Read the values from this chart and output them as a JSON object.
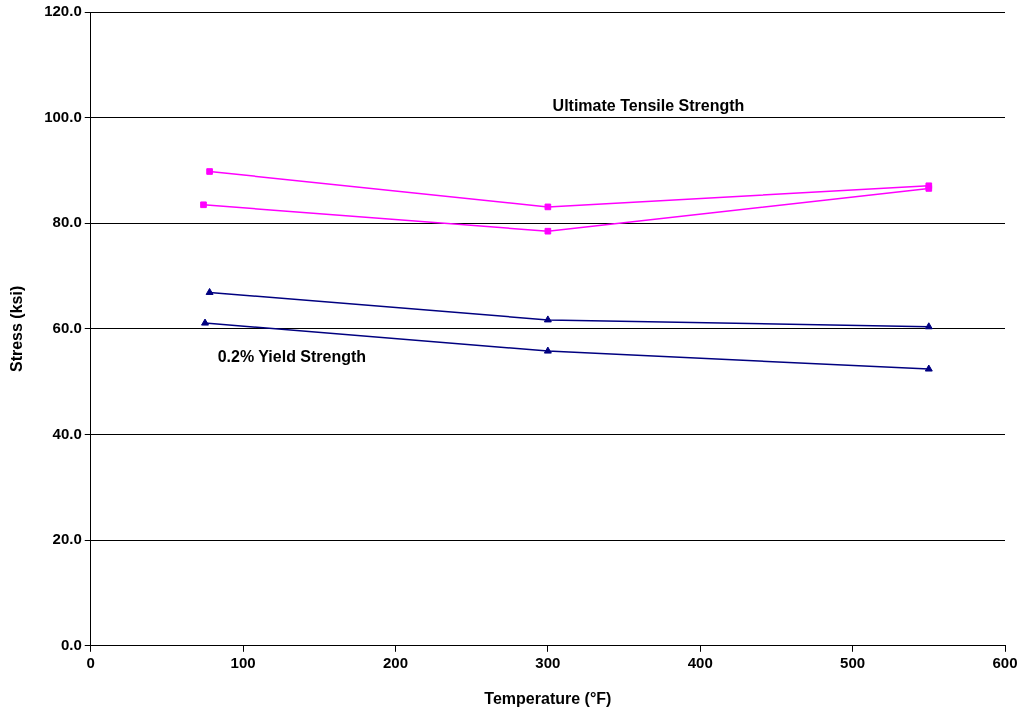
{
  "chart_data": {
    "type": "line",
    "xlabel": "Temperature (°F)",
    "ylabel": "Stress (ksi)",
    "xlim": [
      0,
      600
    ],
    "xticks": [
      0,
      100,
      200,
      300,
      400,
      500,
      600
    ],
    "ylim": [
      0,
      120
    ],
    "yticks": [
      {
        "value": 0,
        "label": "0.0"
      },
      {
        "value": 20,
        "label": "20.0"
      },
      {
        "value": 40,
        "label": "40.0"
      },
      {
        "value": 60,
        "label": "60.0"
      },
      {
        "value": 80,
        "label": "80.0"
      },
      {
        "value": 100,
        "label": "100.0"
      },
      {
        "value": 120,
        "label": "120.0"
      }
    ],
    "grid": "y",
    "legend": false,
    "line_style": "solid",
    "series": [
      {
        "color": "#ff00ff",
        "marker": "square",
        "x": [
          78,
          300,
          550
        ],
        "values": [
          89.8,
          83.1,
          87.1
        ]
      },
      {
        "color": "#ff00ff",
        "marker": "square",
        "x": [
          74,
          300,
          550
        ],
        "values": [
          83.5,
          78.5,
          86.6
        ]
      },
      {
        "color": "#000080",
        "marker": "triangle",
        "x": [
          78,
          300,
          550
        ],
        "values": [
          66.9,
          61.7,
          60.4
        ]
      },
      {
        "color": "#000080",
        "marker": "triangle",
        "x": [
          75,
          300,
          550
        ],
        "values": [
          61.1,
          55.8,
          52.4
        ]
      }
    ],
    "annotations": [
      "Ultimate Tensile Strength",
      "0.2% Yield Strength"
    ]
  }
}
